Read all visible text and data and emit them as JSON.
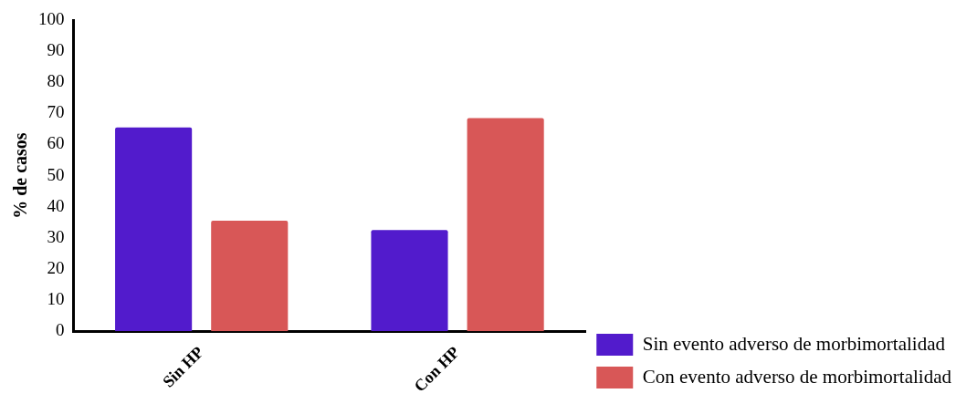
{
  "chart_data": {
    "type": "bar",
    "ylabel": "% de casos",
    "categories": [
      "Sin HP",
      "Con HP"
    ],
    "series": [
      {
        "name": "Sin evento adverso de morbimortalidad",
        "color": "#521bcc",
        "values": [
          65.5,
          32.5
        ]
      },
      {
        "name": "Con evento adverso de morbimortalidad",
        "color": "#d85757",
        "values": [
          35.5,
          68.5
        ]
      }
    ],
    "ylim": [
      0,
      100
    ],
    "yticks": [
      0,
      10,
      20,
      30,
      40,
      50,
      60,
      70,
      80,
      90,
      100
    ],
    "grid": false,
    "legend": "right"
  }
}
